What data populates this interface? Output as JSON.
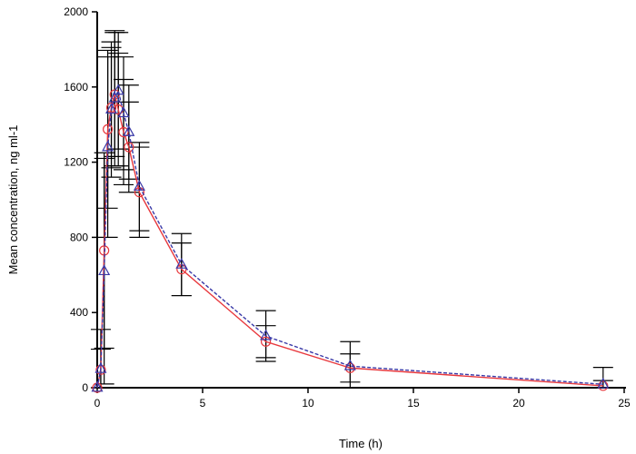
{
  "chart_data": {
    "type": "line",
    "title": "",
    "xlabel": "Time (h)",
    "ylabel": "Mean concentration, ng ml-1",
    "xlim": [
      0,
      25
    ],
    "ylim": [
      0,
      2000
    ],
    "x_ticks": [
      0,
      5,
      10,
      15,
      20,
      25
    ],
    "y_ticks": [
      0,
      400,
      800,
      1200,
      1600,
      2000
    ],
    "legend": "none",
    "series": [
      {
        "name": "circle series (red solid)",
        "color": "#e8383d",
        "marker": "circle",
        "line_style": "solid",
        "x": [
          0,
          0.17,
          0.33,
          0.5,
          0.67,
          0.83,
          1.0,
          1.25,
          1.5,
          2.0,
          4.0,
          8.0,
          12.0,
          24.0
        ],
        "y": [
          0,
          95,
          730,
          1375,
          1490,
          1560,
          1480,
          1360,
          1280,
          1040,
          630,
          245,
          105,
          10
        ],
        "err": [
          0,
          110,
          520,
          420,
          320,
          330,
          300,
          280,
          240,
          240,
          140,
          85,
          75,
          28
        ]
      },
      {
        "name": "triangle series (blue dashed)",
        "color": "#3a3aa8",
        "marker": "triangle",
        "line_style": "dashed",
        "x": [
          0,
          0.17,
          0.33,
          0.5,
          0.67,
          0.83,
          1.0,
          1.25,
          1.5,
          2.0,
          4.0,
          8.0,
          12.0,
          24.0
        ],
        "y": [
          0,
          100,
          620,
          1280,
          1480,
          1540,
          1580,
          1460,
          1360,
          1070,
          655,
          275,
          115,
          18
        ],
        "err": [
          0,
          210,
          600,
          480,
          360,
          360,
          310,
          300,
          250,
          235,
          165,
          135,
          130,
          90
        ]
      }
    ]
  }
}
